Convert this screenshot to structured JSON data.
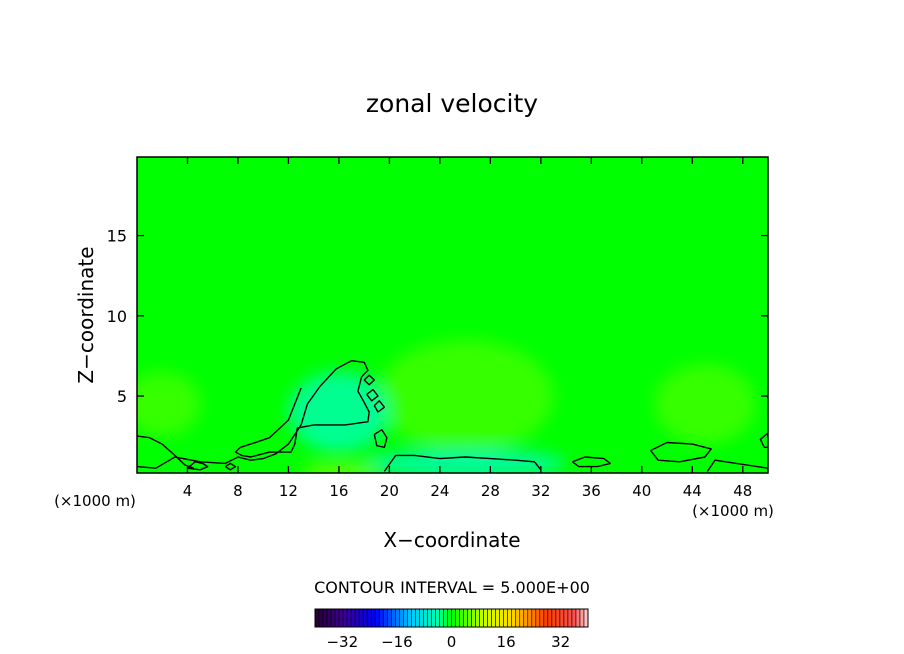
{
  "chart_data": {
    "type": "heatmap",
    "title": "zonal velocity",
    "xlabel": "X−coordinate",
    "ylabel": "Z−coordinate",
    "xlim": [
      0,
      50
    ],
    "ylim": [
      0.2,
      19.9
    ],
    "x_unit_left": "(×1000 m)",
    "x_unit_right": "(×1000 m)",
    "x_ticks": [
      4,
      8,
      12,
      16,
      20,
      24,
      28,
      32,
      36,
      40,
      44,
      48
    ],
    "y_ticks": [
      5,
      10,
      15
    ],
    "x_tick_labels": [
      "4",
      "8",
      "12",
      "16",
      "20",
      "24",
      "28",
      "32",
      "36",
      "40",
      "44",
      "48"
    ],
    "y_tick_labels": [
      "5",
      "10",
      "15"
    ],
    "contour_interval_text": "CONTOUR INTERVAL = 5.000E+00",
    "contour_interval": 5.0,
    "colorbar": {
      "range": [
        -40,
        40
      ],
      "ticks": [
        -32,
        -16,
        0,
        16,
        32
      ],
      "tick_labels": [
        "−32",
        "−16",
        "0",
        "16",
        "32"
      ]
    },
    "background_value": 0,
    "patches": [
      {
        "name": "left-weak-positive",
        "x": 2,
        "z": 4.5,
        "rx": 3,
        "rz": 2,
        "value": 3
      },
      {
        "name": "central-weak-positive",
        "x": 26,
        "z": 5,
        "rx": 7,
        "rz": 3.5,
        "value": 3
      },
      {
        "name": "right-weak-positive",
        "x": 45,
        "z": 4.5,
        "rx": 4,
        "rz": 2.5,
        "value": 3
      },
      {
        "name": "bump-negative",
        "x": 16,
        "z": 4,
        "rx": 4,
        "rz": 2.5,
        "value": -4
      },
      {
        "name": "surface-negative",
        "x": 26,
        "z": 0.8,
        "rx": 8,
        "rz": 0.9,
        "value": -5
      },
      {
        "name": "surface-positive",
        "x": 16,
        "z": 0.3,
        "rx": 3,
        "rz": 0.4,
        "value": 7
      }
    ],
    "contours": [
      {
        "name": "contour-main",
        "points": [
          [
            0,
            0.6
          ],
          [
            1.5,
            0.5
          ],
          [
            3,
            1.2
          ],
          [
            5,
            0.9
          ],
          [
            7,
            0.8
          ],
          [
            8,
            1.2
          ],
          [
            9,
            1.0
          ],
          [
            10,
            1.1
          ],
          [
            11,
            1.4
          ],
          [
            12,
            2.0
          ],
          [
            13,
            3.2
          ],
          [
            13.5,
            4.5
          ],
          [
            14.5,
            5.6
          ],
          [
            15.8,
            6.7
          ],
          [
            17,
            7.2
          ],
          [
            18,
            7.1
          ],
          [
            18.3,
            6.6
          ],
          [
            17.8,
            6.2
          ],
          [
            17.5,
            5.3
          ],
          [
            18,
            4.6
          ],
          [
            18.4,
            4.0
          ],
          [
            18.3,
            3.4
          ],
          [
            17.4,
            3.3
          ],
          [
            16.5,
            3.2
          ],
          [
            14,
            3.2
          ],
          [
            12.7,
            3.0
          ],
          [
            12.5,
            2.0
          ],
          [
            12.2,
            1.5
          ],
          [
            11.5,
            1.5
          ],
          [
            10.5,
            1.5
          ],
          [
            9,
            1.2
          ],
          [
            8.3,
            1.3
          ],
          [
            7.8,
            1.5
          ],
          [
            8.2,
            1.8
          ],
          [
            9,
            2.0
          ],
          [
            10.5,
            2.4
          ],
          [
            12,
            3.5
          ],
          [
            12.5,
            4.5
          ],
          [
            13,
            5.5
          ]
        ]
      },
      {
        "name": "contour-left-edge",
        "points": [
          [
            0,
            2.5
          ],
          [
            1,
            2.4
          ],
          [
            2,
            2.0
          ],
          [
            3,
            1.3
          ],
          [
            3.8,
            0.7
          ],
          [
            4.5,
            0.5
          ]
        ]
      },
      {
        "name": "contour-loop-a",
        "points": [
          [
            4.0,
            0.5
          ],
          [
            4.6,
            0.9
          ],
          [
            5.2,
            0.8
          ],
          [
            5.6,
            0.6
          ],
          [
            5.0,
            0.4
          ],
          [
            4.0,
            0.5
          ]
        ]
      },
      {
        "name": "contour-loop-b",
        "points": [
          [
            7.0,
            0.6
          ],
          [
            7.4,
            0.8
          ],
          [
            7.8,
            0.6
          ],
          [
            7.4,
            0.4
          ],
          [
            7.0,
            0.6
          ]
        ]
      },
      {
        "name": "contour-loop-c",
        "points": [
          [
            18.0,
            6.0
          ],
          [
            18.4,
            6.3
          ],
          [
            18.8,
            6.0
          ],
          [
            18.4,
            5.7
          ],
          [
            18.0,
            6.0
          ]
        ]
      },
      {
        "name": "contour-loop-d",
        "points": [
          [
            18.2,
            5.1
          ],
          [
            18.7,
            5.4
          ],
          [
            19.1,
            5.0
          ],
          [
            18.6,
            4.7
          ],
          [
            18.2,
            5.1
          ]
        ]
      },
      {
        "name": "contour-loop-e",
        "points": [
          [
            18.8,
            4.4
          ],
          [
            19.2,
            4.7
          ],
          [
            19.6,
            4.3
          ],
          [
            19.1,
            4.0
          ],
          [
            18.8,
            4.4
          ]
        ]
      },
      {
        "name": "contour-loop-f",
        "points": [
          [
            18.8,
            2.6
          ],
          [
            19.4,
            2.9
          ],
          [
            19.8,
            2.4
          ],
          [
            19.6,
            1.8
          ],
          [
            19.0,
            1.9
          ],
          [
            18.8,
            2.6
          ]
        ]
      },
      {
        "name": "contour-surface",
        "points": [
          [
            19.6,
            0.3
          ],
          [
            20.5,
            1.3
          ],
          [
            22,
            1.3
          ],
          [
            24,
            1.1
          ],
          [
            26,
            1.2
          ],
          [
            28,
            1.1
          ],
          [
            30,
            1.0
          ],
          [
            31.5,
            0.9
          ],
          [
            32,
            0.4
          ]
        ]
      },
      {
        "name": "contour-loop-g",
        "points": [
          [
            34.5,
            0.9
          ],
          [
            35.5,
            1.2
          ],
          [
            37,
            1.1
          ],
          [
            37.5,
            0.8
          ],
          [
            36.5,
            0.6
          ],
          [
            35,
            0.6
          ],
          [
            34.5,
            0.9
          ]
        ]
      },
      {
        "name": "contour-loop-h",
        "points": [
          [
            40.7,
            1.6
          ],
          [
            42,
            2.1
          ],
          [
            44,
            2.0
          ],
          [
            45.5,
            1.7
          ],
          [
            45,
            1.2
          ],
          [
            43,
            0.9
          ],
          [
            41.3,
            1.0
          ],
          [
            40.7,
            1.6
          ]
        ]
      },
      {
        "name": "contour-right",
        "points": [
          [
            45.2,
            0.3
          ],
          [
            45.8,
            1.0
          ],
          [
            47.5,
            0.8
          ],
          [
            50,
            0.5
          ]
        ]
      },
      {
        "name": "contour-right-edge",
        "points": [
          [
            50,
            2.7
          ],
          [
            49.4,
            2.3
          ],
          [
            49.7,
            1.8
          ],
          [
            50,
            1.8
          ]
        ]
      }
    ]
  }
}
